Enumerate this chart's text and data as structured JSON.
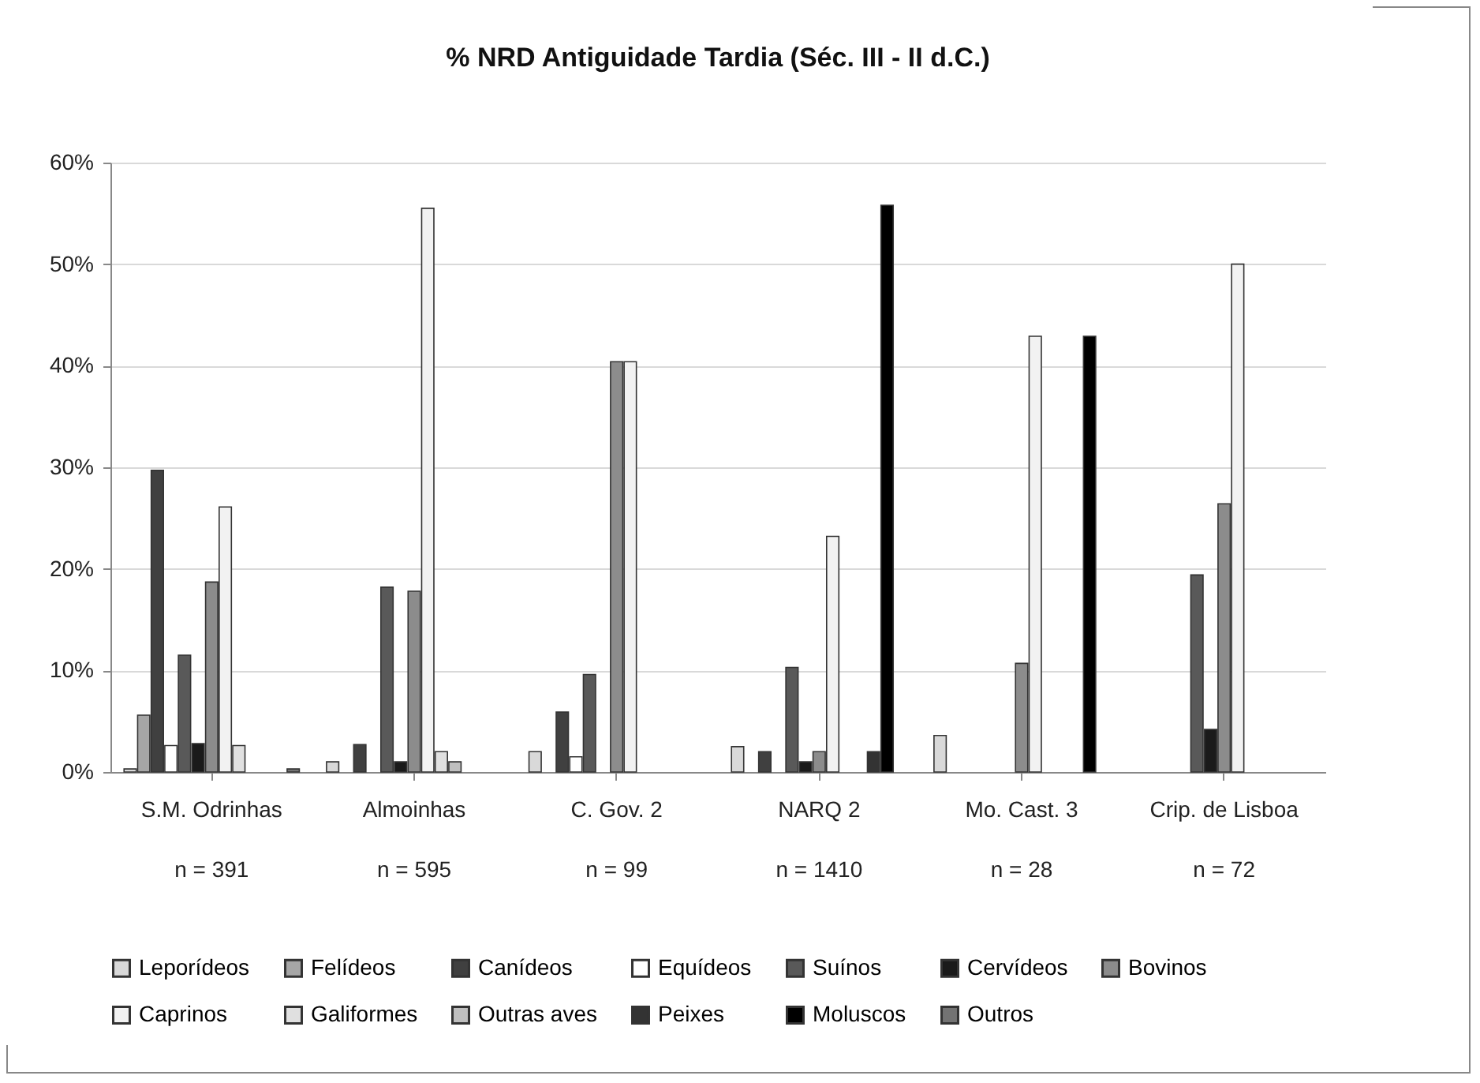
{
  "chart_data": {
    "type": "bar",
    "title": "% NRD Antiguidade Tardia (Séc. III - II d.C.)",
    "categories": [
      "S.M. Odrinhas\nn = 391",
      "Almoinhas\nn = 595",
      "C. Gov. 2\nn = 99",
      "NARQ 2\nn = 1410",
      "Mo. Cast. 3\nn = 28",
      "Crip. de Lisboa\nn = 72"
    ],
    "series": [
      {
        "name": "Leporídeos",
        "color": "#d9d9d9",
        "values": [
          0.3,
          1.0,
          2.0,
          2.5,
          3.6,
          null
        ]
      },
      {
        "name": "Felídeos",
        "color": "#a6a6a6",
        "values": [
          5.6,
          null,
          null,
          null,
          null,
          null
        ]
      },
      {
        "name": "Canídeos",
        "color": "#404040",
        "values": [
          29.7,
          2.7,
          5.9,
          2.0,
          null,
          null
        ]
      },
      {
        "name": "Equídeos",
        "color": "#ffffff",
        "values": [
          2.6,
          null,
          1.5,
          null,
          null,
          null
        ]
      },
      {
        "name": "Suínos",
        "color": "#595959",
        "values": [
          11.5,
          18.2,
          9.6,
          10.3,
          null,
          19.4
        ]
      },
      {
        "name": "Cervídeos",
        "color": "#1a1a1a",
        "values": [
          2.8,
          1.0,
          null,
          1.0,
          null,
          4.2
        ]
      },
      {
        "name": "Bovinos",
        "color": "#8c8c8c",
        "values": [
          18.7,
          17.8,
          40.4,
          2.0,
          10.7,
          26.4
        ]
      },
      {
        "name": "Caprinos",
        "color": "#f2f2f2",
        "values": [
          26.1,
          55.5,
          40.4,
          23.2,
          42.9,
          50.0
        ]
      },
      {
        "name": "Galiformes",
        "color": "#e0e0e0",
        "values": [
          2.6,
          2.0,
          null,
          null,
          null,
          null
        ]
      },
      {
        "name": "Outras aves",
        "color": "#bfbfbf",
        "values": [
          null,
          1.0,
          null,
          null,
          null,
          null
        ]
      },
      {
        "name": "Peixes",
        "color": "#333333",
        "values": [
          null,
          null,
          null,
          2.0,
          null,
          null
        ]
      },
      {
        "name": "Moluscos",
        "color": "#000000",
        "values": [
          null,
          null,
          null,
          55.8,
          42.9,
          null
        ]
      },
      {
        "name": "Outros",
        "color": "#737373",
        "values": [
          0.3,
          null,
          null,
          null,
          null,
          null
        ]
      }
    ],
    "ylim": [
      0,
      60
    ],
    "yticks": [
      {
        "value": 0,
        "label": "0%"
      },
      {
        "value": 10,
        "label": "10%"
      },
      {
        "value": 20,
        "label": "20%"
      },
      {
        "value": 30,
        "label": "30%"
      },
      {
        "value": 40,
        "label": "40%"
      },
      {
        "value": 50,
        "label": "50%"
      },
      {
        "value": 60,
        "label": "60%"
      }
    ],
    "grid": "y",
    "legend": "bottom"
  }
}
